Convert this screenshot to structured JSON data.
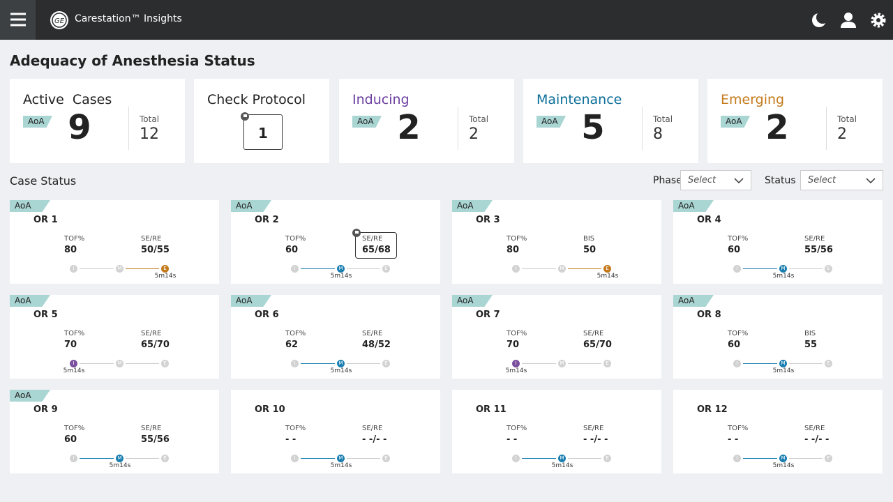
{
  "header": {
    "app_name": "Carestation™ Insights"
  },
  "page_title": "Adequacy of Anesthesia Status",
  "summary": [
    {
      "label": "Active  Cases",
      "color": "#222222",
      "tag": "AoA",
      "count": 9,
      "total_label": "Total",
      "total": 12
    },
    {
      "label": "Check Protocol",
      "color": "#222222",
      "count": 1,
      "flag": true
    },
    {
      "label": "Inducing",
      "color": "#6b3fa0",
      "tag": "AoA",
      "count": 2,
      "total_label": "Total",
      "total": 2
    },
    {
      "label": "Maintenance",
      "color": "#0b6e99",
      "tag": "AoA",
      "count": 5,
      "total_label": "Total",
      "total": 8
    },
    {
      "label": "Emerging",
      "color": "#c47a1c",
      "tag": "AoA",
      "count": 2,
      "total_label": "Total",
      "total": 2
    }
  ],
  "case_status": {
    "title": "Case Status",
    "filters": [
      {
        "label": "Phase",
        "placeholder": "Select"
      },
      {
        "label": "Status",
        "placeholder": "Select"
      }
    ]
  },
  "phase_steps": [
    "I",
    "M",
    "E"
  ],
  "phase_colors": {
    "I": "#7a4f9e",
    "M": "#1a7fb0",
    "E": "#c47a1c"
  },
  "cases": [
    {
      "tag": "AoA",
      "name": "OR 1",
      "metrics": [
        {
          "label": "TOF%",
          "value": "80"
        },
        {
          "label": "SE/RE",
          "value": "50/55"
        }
      ],
      "phase": "E",
      "time": "5m14s"
    },
    {
      "tag": "AoA",
      "name": "OR 2",
      "metrics": [
        {
          "label": "TOF%",
          "value": "60"
        },
        {
          "label": "SE/RE",
          "value": "65/68",
          "flag": true
        }
      ],
      "phase": "M",
      "time": "5m14s"
    },
    {
      "tag": "AoA",
      "name": "OR 3",
      "metrics": [
        {
          "label": "TOF%",
          "value": "80"
        },
        {
          "label": "BIS",
          "value": "50"
        }
      ],
      "phase": "E",
      "time": "5m14s"
    },
    {
      "tag": "AoA",
      "name": "OR 4",
      "metrics": [
        {
          "label": "TOF%",
          "value": "60"
        },
        {
          "label": "SE/RE",
          "value": "55/56"
        }
      ],
      "phase": "M",
      "time": "5m14s"
    },
    {
      "tag": "AoA",
      "name": "OR 5",
      "metrics": [
        {
          "label": "TOF%",
          "value": "70"
        },
        {
          "label": "SE/RE",
          "value": "65/70"
        }
      ],
      "phase": "I",
      "time": "5m14s"
    },
    {
      "tag": "AoA",
      "name": "OR 6",
      "metrics": [
        {
          "label": "TOF%",
          "value": "62"
        },
        {
          "label": "SE/RE",
          "value": "48/52"
        }
      ],
      "phase": "M",
      "time": "5m14s"
    },
    {
      "tag": "AoA",
      "name": "OR 7",
      "metrics": [
        {
          "label": "TOF%",
          "value": "70"
        },
        {
          "label": "SE/RE",
          "value": "65/70"
        }
      ],
      "phase": "I",
      "time": "5m14s"
    },
    {
      "tag": "AoA",
      "name": "OR 8",
      "metrics": [
        {
          "label": "TOF%",
          "value": "60"
        },
        {
          "label": "BIS",
          "value": "55"
        }
      ],
      "phase": "M",
      "time": "5m14s"
    },
    {
      "tag": "AoA",
      "name": "OR 9",
      "metrics": [
        {
          "label": "TOF%",
          "value": "60"
        },
        {
          "label": "SE/RE",
          "value": "55/56"
        }
      ],
      "phase": "M",
      "time": "5m14s"
    },
    {
      "name": "OR 10",
      "metrics": [
        {
          "label": "TOF%",
          "value": "- -"
        },
        {
          "label": "SE/RE",
          "value": "- -/- -"
        }
      ],
      "phase": "M",
      "time": "5m14s"
    },
    {
      "name": "OR 11",
      "metrics": [
        {
          "label": "TOF%",
          "value": "- -"
        },
        {
          "label": "SE/RE",
          "value": "- -/- -"
        }
      ],
      "phase": "M",
      "time": "5m14s"
    },
    {
      "name": "OR 12",
      "metrics": [
        {
          "label": "TOF%",
          "value": "- -"
        },
        {
          "label": "SE/RE",
          "value": "- -/- -"
        }
      ],
      "phase": "M",
      "time": "5m14s"
    }
  ]
}
